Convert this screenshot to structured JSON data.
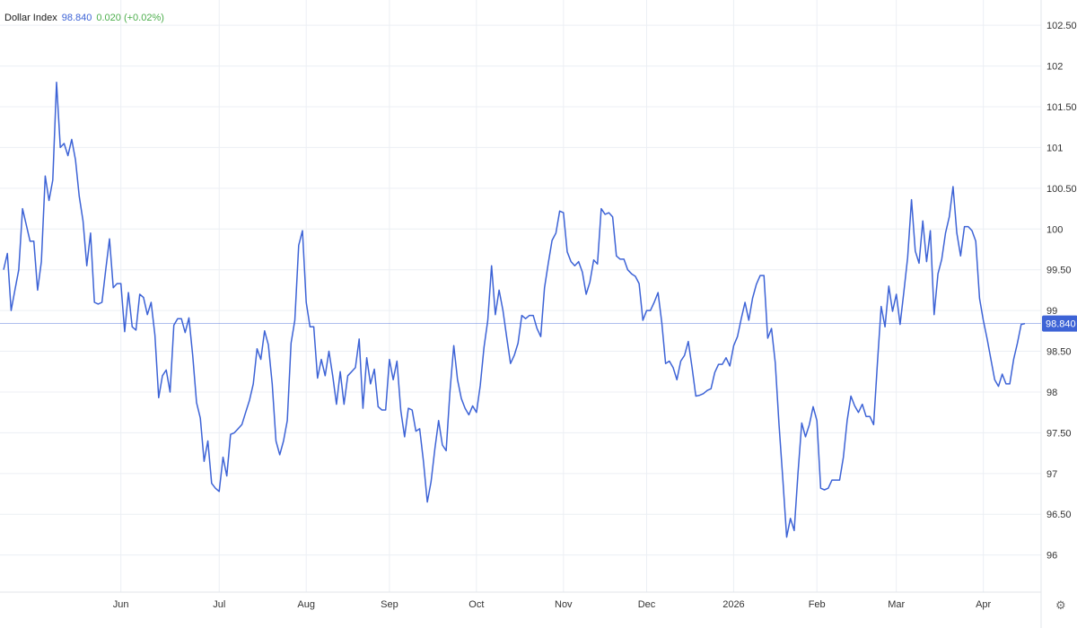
{
  "legend": {
    "name": "Dollar Index",
    "price": "98.840",
    "change": "0.020 (+0.02%)"
  },
  "colors": {
    "line": "#3d63d6",
    "name": "#1a1a1a",
    "price": "#3d63d6",
    "change": "#4cae4c",
    "grid": "#eceff4",
    "axis_text": "#333333",
    "badge_bg": "#3d63d6",
    "badge_text": "#ffffff"
  },
  "settings_icon": "gear-icon",
  "chart_data": {
    "type": "line",
    "title": "Dollar Index",
    "xlabel": "",
    "ylabel": "",
    "ylim": [
      95.6,
      102.7
    ],
    "y_ticks": [
      {
        "value": 96,
        "label": "96"
      },
      {
        "value": 96.5,
        "label": "96.50"
      },
      {
        "value": 97,
        "label": "97"
      },
      {
        "value": 97.5,
        "label": "97.50"
      },
      {
        "value": 98,
        "label": "98"
      },
      {
        "value": 98.5,
        "label": "98.50"
      },
      {
        "value": 99,
        "label": "99"
      },
      {
        "value": 99.5,
        "label": "99.50"
      },
      {
        "value": 100,
        "label": "100"
      },
      {
        "value": 100.5,
        "label": "100.50"
      },
      {
        "value": 101,
        "label": "101"
      },
      {
        "value": 101.5,
        "label": "101.50"
      },
      {
        "value": 102,
        "label": "102"
      },
      {
        "value": 102.5,
        "label": "102.50"
      }
    ],
    "x_ticks": [
      {
        "index": 31,
        "label": "Jun"
      },
      {
        "index": 57,
        "label": "Jul"
      },
      {
        "index": 80,
        "label": "Aug"
      },
      {
        "index": 102,
        "label": "Sep"
      },
      {
        "index": 125,
        "label": "Oct"
      },
      {
        "index": 148,
        "label": "Nov"
      },
      {
        "index": 170,
        "label": "Dec"
      },
      {
        "index": 193,
        "label": "2026"
      },
      {
        "index": 215,
        "label": "Feb"
      },
      {
        "index": 236,
        "label": "Mar"
      },
      {
        "index": 259,
        "label": "Apr"
      }
    ],
    "last_value_label": "98.840",
    "grid": true,
    "series": [
      {
        "name": "Dollar Index",
        "values": [
          99.5,
          99.7,
          99.0,
          99.25,
          99.5,
          100.25,
          100.05,
          99.85,
          99.85,
          99.25,
          99.6,
          100.65,
          100.35,
          100.6,
          101.8,
          101.0,
          101.05,
          100.9,
          101.1,
          100.85,
          100.4,
          100.1,
          99.55,
          99.95,
          99.1,
          99.08,
          99.1,
          99.5,
          99.88,
          99.28,
          99.33,
          99.33,
          98.74,
          99.22,
          98.8,
          98.76,
          99.2,
          99.16,
          98.95,
          99.1,
          98.7,
          97.93,
          98.2,
          98.27,
          98.0,
          98.82,
          98.9,
          98.9,
          98.73,
          98.91,
          98.45,
          97.87,
          97.68,
          97.15,
          97.4,
          96.88,
          96.82,
          96.78,
          97.2,
          96.97,
          97.48,
          97.5,
          97.55,
          97.6,
          97.75,
          97.9,
          98.1,
          98.53,
          98.4,
          98.75,
          98.58,
          98.1,
          97.4,
          97.23,
          97.4,
          97.65,
          98.6,
          98.88,
          99.8,
          99.98,
          99.1,
          98.8,
          98.8,
          98.17,
          98.4,
          98.2,
          98.5,
          98.2,
          97.85,
          98.25,
          97.85,
          98.2,
          98.25,
          98.3,
          98.65,
          97.8,
          98.42,
          98.1,
          98.28,
          97.82,
          97.78,
          97.78,
          98.4,
          98.15,
          98.38,
          97.77,
          97.45,
          97.8,
          97.78,
          97.52,
          97.55,
          97.15,
          96.65,
          96.9,
          97.3,
          97.65,
          97.35,
          97.28,
          98.0,
          98.57,
          98.15,
          97.92,
          97.8,
          97.72,
          97.83,
          97.75,
          98.08,
          98.55,
          98.88,
          99.55,
          98.95,
          99.25,
          99.0,
          98.67,
          98.35,
          98.45,
          98.6,
          98.94,
          98.9,
          98.94,
          98.94,
          98.78,
          98.68,
          99.28,
          99.58,
          99.86,
          99.95,
          100.22,
          100.2,
          99.72,
          99.6,
          99.55,
          99.6,
          99.47,
          99.2,
          99.35,
          99.62,
          99.57,
          100.25,
          100.18,
          100.2,
          100.15,
          99.67,
          99.63,
          99.63,
          99.5,
          99.45,
          99.42,
          99.33,
          98.88,
          99.0,
          99.0,
          99.1,
          99.22,
          98.85,
          98.35,
          98.38,
          98.3,
          98.15,
          98.38,
          98.45,
          98.62,
          98.3,
          97.95,
          97.96,
          97.98,
          98.02,
          98.04,
          98.24,
          98.34,
          98.34,
          98.42,
          98.32,
          98.57,
          98.68,
          98.9,
          99.1,
          98.88,
          99.15,
          99.32,
          99.43,
          99.43,
          98.66,
          98.78,
          98.36,
          97.6,
          96.92,
          96.22,
          96.45,
          96.3,
          97.0,
          97.62,
          97.45,
          97.6,
          97.82,
          97.65,
          96.82,
          96.8,
          96.82,
          96.92,
          96.92,
          96.92,
          97.2,
          97.65,
          97.95,
          97.83,
          97.75,
          97.85,
          97.7,
          97.7,
          97.6,
          98.35,
          99.05,
          98.8,
          99.3,
          98.99,
          99.2,
          98.83,
          99.23,
          99.65,
          100.36,
          99.73,
          99.58,
          100.1,
          99.6,
          99.98,
          98.95,
          99.45,
          99.63,
          99.95,
          100.15,
          100.52,
          99.95,
          99.67,
          100.03,
          100.03,
          99.98,
          99.85,
          99.15,
          98.88,
          98.65,
          98.4,
          98.15,
          98.07,
          98.22,
          98.1,
          98.1,
          98.4,
          98.6,
          98.83,
          98.84
        ]
      }
    ]
  }
}
